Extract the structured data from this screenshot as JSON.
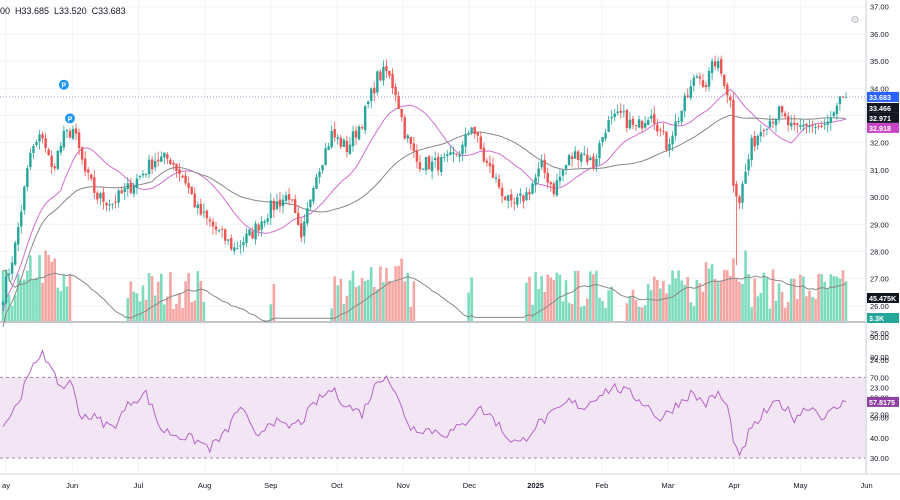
{
  "legend": {
    "o": "00",
    "h": "H33.685",
    "l": "L33.520",
    "c": "C33.683"
  },
  "colors": {
    "up": "#26a69a",
    "down": "#ef5350",
    "vol_up": "#7ddcbd",
    "vol_down": "#f6a6a2",
    "ma_fast": "#d16fd1",
    "ma_slow": "#888888",
    "rsi_line": "#b565c7",
    "rsi_band": "#f3e6f4",
    "rsi_guide": "#9c8aa2",
    "grid": "#f0f3fa",
    "axis_text": "#131722",
    "hline": "#9aa7d8"
  },
  "icons": {
    "settings": "gear-icon",
    "event_marker": "dividend-marker-icon"
  },
  "event_marker_label": "P",
  "chart_data": [
    {
      "type": "candlestick",
      "y_ticks": [
        26.0,
        27.0,
        28.0,
        29.0,
        30.0,
        31.0,
        32.0,
        33.0,
        34.0,
        35.0,
        36.0,
        37.0
      ],
      "ylim": [
        25.7,
        37.1
      ],
      "x_ticks": [
        "ay",
        "Jun",
        "Jul",
        "Aug",
        "Sep",
        "Oct",
        "Nov",
        "Dec",
        "2025",
        "Feb",
        "Mar",
        "Apr",
        "May",
        "Jun"
      ],
      "anchors": [
        {
          "t": 0,
          "p": 26.4
        },
        {
          "t": 4,
          "p": 28.2
        },
        {
          "t": 9,
          "p": 31.6
        },
        {
          "t": 13,
          "p": 32.3
        },
        {
          "t": 16,
          "p": 31.0
        },
        {
          "t": 20,
          "p": 32.2
        },
        {
          "t": 23,
          "p": 32.5
        },
        {
          "t": 27,
          "p": 30.9
        },
        {
          "t": 31,
          "p": 30.0
        },
        {
          "t": 36,
          "p": 29.8
        },
        {
          "t": 42,
          "p": 30.4
        },
        {
          "t": 50,
          "p": 31.4
        },
        {
          "t": 55,
          "p": 31.4
        },
        {
          "t": 60,
          "p": 30.6
        },
        {
          "t": 64,
          "p": 29.5
        },
        {
          "t": 70,
          "p": 28.8
        },
        {
          "t": 76,
          "p": 28.1
        },
        {
          "t": 82,
          "p": 28.7
        },
        {
          "t": 88,
          "p": 29.6
        },
        {
          "t": 94,
          "p": 30.1
        },
        {
          "t": 98,
          "p": 28.3
        },
        {
          "t": 102,
          "p": 30.6
        },
        {
          "t": 108,
          "p": 32.3
        },
        {
          "t": 113,
          "p": 31.8
        },
        {
          "t": 118,
          "p": 32.8
        },
        {
          "t": 123,
          "p": 34.4
        },
        {
          "t": 126,
          "p": 34.6
        },
        {
          "t": 129,
          "p": 33.9
        },
        {
          "t": 132,
          "p": 32.4
        },
        {
          "t": 136,
          "p": 31.3
        },
        {
          "t": 141,
          "p": 31.2
        },
        {
          "t": 146,
          "p": 31.3
        },
        {
          "t": 151,
          "p": 31.8
        },
        {
          "t": 154,
          "p": 32.7
        },
        {
          "t": 158,
          "p": 31.4
        },
        {
          "t": 163,
          "p": 30.4
        },
        {
          "t": 167,
          "p": 29.6
        },
        {
          "t": 172,
          "p": 30.1
        },
        {
          "t": 177,
          "p": 31.1
        },
        {
          "t": 181,
          "p": 30.3
        },
        {
          "t": 186,
          "p": 31.4
        },
        {
          "t": 190,
          "p": 31.7
        },
        {
          "t": 194,
          "p": 31.2
        },
        {
          "t": 198,
          "p": 32.6
        },
        {
          "t": 203,
          "p": 33.0
        },
        {
          "t": 208,
          "p": 32.5
        },
        {
          "t": 213,
          "p": 33.2
        },
        {
          "t": 218,
          "p": 31.9
        },
        {
          "t": 223,
          "p": 33.2
        },
        {
          "t": 228,
          "p": 34.5
        },
        {
          "t": 231,
          "p": 34.2
        },
        {
          "t": 234,
          "p": 35.0
        },
        {
          "t": 237,
          "p": 34.3
        },
        {
          "t": 239,
          "p": 33.5
        },
        {
          "t": 240,
          "p": 30.6
        },
        {
          "t": 242,
          "p": 29.9
        },
        {
          "t": 246,
          "p": 31.9
        },
        {
          "t": 250,
          "p": 32.7
        },
        {
          "t": 255,
          "p": 33.1
        },
        {
          "t": 260,
          "p": 32.4
        },
        {
          "t": 264,
          "p": 32.7
        },
        {
          "t": 269,
          "p": 32.5
        },
        {
          "t": 273,
          "p": 32.9
        },
        {
          "t": 276,
          "p": 33.7
        }
      ],
      "spikes": [
        {
          "t": 241,
          "low": 27.5
        }
      ],
      "last_price": 33.683,
      "price_labels": [
        {
          "text": "33.683",
          "color": "#2962ff"
        },
        {
          "text": "33.466",
          "color": "#131722"
        },
        {
          "text": "32.971",
          "color": "#131722"
        },
        {
          "text": "32.918",
          "color": "#c845c8"
        }
      ],
      "events": [
        {
          "t": 20,
          "label": "P"
        },
        {
          "t": 22,
          "label": "P"
        }
      ]
    },
    {
      "type": "bar",
      "name": "volume",
      "value_label": "45.475K",
      "ma_label": "3.3K",
      "presence_ranges": [
        [
          0,
          22
        ],
        [
          41,
          66
        ],
        [
          88,
          89
        ],
        [
          108,
          135
        ],
        [
          153,
          154
        ],
        [
          172,
          200
        ],
        [
          205,
          238
        ],
        [
          239,
          277
        ]
      ],
      "value_guides": [
        22.0,
        23.0,
        24.0,
        25.0
      ]
    },
    {
      "type": "line",
      "name": "rsi",
      "y_ticks": [
        30.0,
        40.0,
        50.0,
        60.0,
        70.0,
        80.0,
        90.0
      ],
      "ylim": [
        27.0,
        91.5
      ],
      "band": [
        30,
        70
      ],
      "last_value": 57.8175,
      "value_label": "57.8175",
      "anchors": [
        {
          "t": 0,
          "v": 46
        },
        {
          "t": 4,
          "v": 55
        },
        {
          "t": 9,
          "v": 72
        },
        {
          "t": 13,
          "v": 84
        },
        {
          "t": 16,
          "v": 72
        },
        {
          "t": 20,
          "v": 64
        },
        {
          "t": 22,
          "v": 70
        },
        {
          "t": 25,
          "v": 52
        },
        {
          "t": 30,
          "v": 50
        },
        {
          "t": 36,
          "v": 45
        },
        {
          "t": 42,
          "v": 58
        },
        {
          "t": 47,
          "v": 62
        },
        {
          "t": 52,
          "v": 44
        },
        {
          "t": 58,
          "v": 41
        },
        {
          "t": 63,
          "v": 39
        },
        {
          "t": 68,
          "v": 35
        },
        {
          "t": 73,
          "v": 42
        },
        {
          "t": 78,
          "v": 56
        },
        {
          "t": 83,
          "v": 40
        },
        {
          "t": 88,
          "v": 49
        },
        {
          "t": 93,
          "v": 45
        },
        {
          "t": 98,
          "v": 48
        },
        {
          "t": 103,
          "v": 58
        },
        {
          "t": 108,
          "v": 64
        },
        {
          "t": 113,
          "v": 56
        },
        {
          "t": 118,
          "v": 52
        },
        {
          "t": 123,
          "v": 68
        },
        {
          "t": 126,
          "v": 72
        },
        {
          "t": 130,
          "v": 58
        },
        {
          "t": 134,
          "v": 45
        },
        {
          "t": 140,
          "v": 44
        },
        {
          "t": 146,
          "v": 42
        },
        {
          "t": 151,
          "v": 46
        },
        {
          "t": 156,
          "v": 55
        },
        {
          "t": 161,
          "v": 50
        },
        {
          "t": 166,
          "v": 40
        },
        {
          "t": 170,
          "v": 37
        },
        {
          "t": 175,
          "v": 46
        },
        {
          "t": 181,
          "v": 52
        },
        {
          "t": 186,
          "v": 58
        },
        {
          "t": 191,
          "v": 55
        },
        {
          "t": 196,
          "v": 62
        },
        {
          "t": 201,
          "v": 65
        },
        {
          "t": 206,
          "v": 62
        },
        {
          "t": 211,
          "v": 57
        },
        {
          "t": 216,
          "v": 49
        },
        {
          "t": 221,
          "v": 56
        },
        {
          "t": 226,
          "v": 62
        },
        {
          "t": 231,
          "v": 57
        },
        {
          "t": 235,
          "v": 62
        },
        {
          "t": 238,
          "v": 55
        },
        {
          "t": 240,
          "v": 40
        },
        {
          "t": 242,
          "v": 29
        },
        {
          "t": 245,
          "v": 42
        },
        {
          "t": 250,
          "v": 52
        },
        {
          "t": 255,
          "v": 58
        },
        {
          "t": 260,
          "v": 50
        },
        {
          "t": 265,
          "v": 56
        },
        {
          "t": 270,
          "v": 50
        },
        {
          "t": 274,
          "v": 55
        },
        {
          "t": 277,
          "v": 57.8
        }
      ]
    }
  ]
}
